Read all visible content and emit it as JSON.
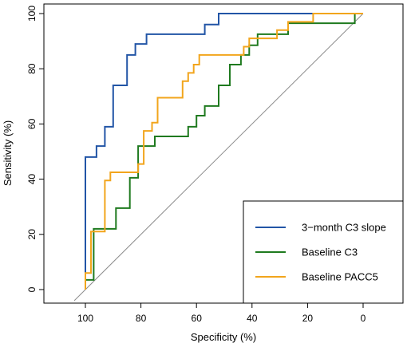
{
  "chart_data": {
    "type": "line",
    "title": "",
    "xlabel": "Specificity (%)",
    "ylabel": "Sensitivity (%)",
    "xlim": [
      100,
      0
    ],
    "ylim": [
      0,
      100
    ],
    "x_reversed": true,
    "x_ticks": [
      100,
      80,
      60,
      40,
      20,
      0
    ],
    "y_ticks": [
      0,
      20,
      40,
      60,
      80,
      100
    ],
    "x_tick_labels": [
      "100",
      "80",
      "60",
      "40",
      "20",
      "0"
    ],
    "y_tick_labels": [
      "0",
      "20",
      "40",
      "60",
      "80",
      "100"
    ],
    "grid": false,
    "legend_position": "bottom-right",
    "reference_line": {
      "from": [
        100,
        0
      ],
      "to": [
        0,
        100
      ],
      "color": "#8c8c8c"
    },
    "series": [
      {
        "name": "3−month C3 slope",
        "color": "#2255a6",
        "points": [
          [
            100,
            0
          ],
          [
            100,
            48
          ],
          [
            96,
            48
          ],
          [
            96,
            52
          ],
          [
            93,
            52
          ],
          [
            93,
            59
          ],
          [
            90,
            59
          ],
          [
            90,
            74
          ],
          [
            85,
            74
          ],
          [
            85,
            85
          ],
          [
            82,
            85
          ],
          [
            82,
            89
          ],
          [
            78,
            89
          ],
          [
            78,
            92.5
          ],
          [
            57,
            92.5
          ],
          [
            57,
            96
          ],
          [
            52,
            96
          ],
          [
            52,
            100
          ],
          [
            0,
            100
          ]
        ]
      },
      {
        "name": "Baseline C3",
        "color": "#1f7a1f",
        "points": [
          [
            100,
            0
          ],
          [
            100,
            3.5
          ],
          [
            97,
            3.5
          ],
          [
            97,
            22
          ],
          [
            89,
            22
          ],
          [
            89,
            29.5
          ],
          [
            84,
            29.5
          ],
          [
            84,
            40.5
          ],
          [
            81,
            40.5
          ],
          [
            81,
            52
          ],
          [
            75,
            52
          ],
          [
            75,
            55.5
          ],
          [
            63,
            55.5
          ],
          [
            63,
            59
          ],
          [
            60,
            59
          ],
          [
            60,
            63
          ],
          [
            57,
            63
          ],
          [
            57,
            66.5
          ],
          [
            52,
            66.5
          ],
          [
            52,
            74
          ],
          [
            48,
            74
          ],
          [
            48,
            81.5
          ],
          [
            44,
            81.5
          ],
          [
            44,
            85
          ],
          [
            41,
            85
          ],
          [
            41,
            88.5
          ],
          [
            38,
            88.5
          ],
          [
            38,
            92.5
          ],
          [
            27,
            92.5
          ],
          [
            27,
            96.5
          ],
          [
            3,
            96.5
          ],
          [
            3,
            100
          ],
          [
            0,
            100
          ]
        ]
      },
      {
        "name": "Baseline PACC5",
        "color": "#f2a51c",
        "points": [
          [
            100,
            0
          ],
          [
            100,
            6
          ],
          [
            98,
            6
          ],
          [
            98,
            21
          ],
          [
            93,
            21
          ],
          [
            93,
            39.5
          ],
          [
            91,
            39.5
          ],
          [
            91,
            42.5
          ],
          [
            81,
            42.5
          ],
          [
            81,
            45.5
          ],
          [
            79,
            45.5
          ],
          [
            79,
            57.5
          ],
          [
            76,
            57.5
          ],
          [
            76,
            60.5
          ],
          [
            74,
            60.5
          ],
          [
            74,
            69.5
          ],
          [
            65,
            69.5
          ],
          [
            65,
            75.5
          ],
          [
            63,
            75.5
          ],
          [
            63,
            78.5
          ],
          [
            61,
            78.5
          ],
          [
            61,
            81.5
          ],
          [
            59,
            81.5
          ],
          [
            59,
            85
          ],
          [
            43,
            85
          ],
          [
            43,
            88
          ],
          [
            41,
            88
          ],
          [
            41,
            91
          ],
          [
            31,
            91
          ],
          [
            31,
            94
          ],
          [
            27,
            94
          ],
          [
            27,
            97
          ],
          [
            18,
            97
          ],
          [
            18,
            100
          ],
          [
            0,
            100
          ]
        ]
      }
    ]
  }
}
